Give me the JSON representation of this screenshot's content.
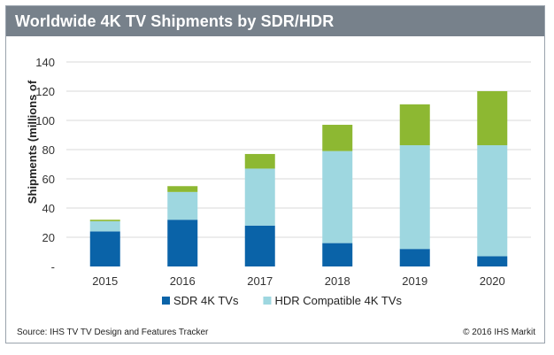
{
  "title": "Worldwide 4K TV Shipments by SDR/HDR",
  "footer": {
    "source": "Source: IHS TV TV Design and Features Tracker",
    "copyright": "© 2016 IHS Markit"
  },
  "colors": {
    "title_bar": "#77818b",
    "sdr": "#0a63a8",
    "hdr": "#9ed7e0",
    "top": "#8db832",
    "grid": "#d9d9d9"
  },
  "chart_data": {
    "type": "bar",
    "stacked": true,
    "title": "Worldwide 4K TV Shipments by SDR/HDR",
    "ylabel": "Shipments (millions of",
    "xlabel": "",
    "ylim": [
      0,
      140
    ],
    "yticks": [
      0,
      20,
      40,
      60,
      80,
      100,
      120,
      140
    ],
    "ytick_labels": [
      "-",
      "20",
      "40",
      "60",
      "80",
      "100",
      "120",
      "140"
    ],
    "categories": [
      "2015",
      "2016",
      "2017",
      "2018",
      "2019",
      "2020"
    ],
    "grid": true,
    "legend_position": "bottom",
    "series": [
      {
        "name": "SDR 4K TVs",
        "color": "#0a63a8",
        "values": [
          24,
          32,
          28,
          16,
          12,
          7
        ]
      },
      {
        "name": "HDR Compatible 4K TVs",
        "color": "#9ed7e0",
        "values": [
          7,
          19,
          39,
          63,
          71,
          76
        ]
      },
      {
        "color": "#8db832",
        "values": [
          1,
          4,
          10,
          18,
          28,
          37
        ]
      }
    ]
  }
}
